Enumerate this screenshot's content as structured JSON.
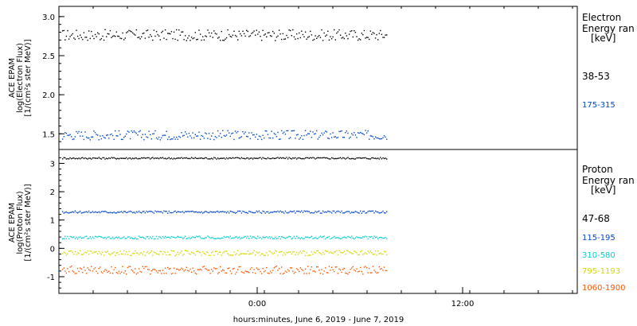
{
  "chart_data": [
    {
      "type": "scatter",
      "panel": "electron",
      "ylabel_lines": [
        "ACE EPAM",
        "log(Electron Flux)",
        "[1/(cm²s ster MeV)]"
      ],
      "yticks": [
        "1.5",
        "2.0",
        "2.5",
        "3.0"
      ],
      "ylim": [
        1.35,
        3.08
      ],
      "legend_lines": [
        "Electron",
        "Energy ran",
        "[keV]"
      ],
      "series": [
        {
          "name": "38-53",
          "color": "#000000",
          "mean": 2.77,
          "amplitude": 0.07
        },
        {
          "name": "175-315",
          "color": "#0047cc",
          "mean": 1.49,
          "amplitude": 0.06
        }
      ]
    },
    {
      "type": "scatter",
      "panel": "proton",
      "ylabel_lines": [
        "ACE EPAM",
        "log(Proton Flux)",
        "[1/(cm²s ster MeV)]"
      ],
      "yticks": [
        "-1",
        "0",
        "1",
        "2",
        "3"
      ],
      "ylim": [
        -1.45,
        3.35
      ],
      "legend_lines": [
        "Proton",
        "Energy ran",
        "[keV]"
      ],
      "series": [
        {
          "name": "47-68",
          "color": "#000000",
          "mean": 3.2,
          "amplitude": 0.03
        },
        {
          "name": "115-195",
          "color": "#0047cc",
          "mean": 1.3,
          "amplitude": 0.04
        },
        {
          "name": "310-580",
          "color": "#00d0d0",
          "mean": 0.4,
          "amplitude": 0.05
        },
        {
          "name": "795-1193",
          "color": "#d6d600",
          "mean": -0.15,
          "amplitude": 0.09
        },
        {
          "name": "1060-1900",
          "color": "#ff5500",
          "mean": -0.75,
          "amplitude": 0.14
        }
      ]
    }
  ],
  "xaxis": {
    "tick_labels": [
      "0:00",
      "12:00"
    ],
    "xlabel": "hours:minutes, June  6, 2019 - June  7, 2019"
  }
}
